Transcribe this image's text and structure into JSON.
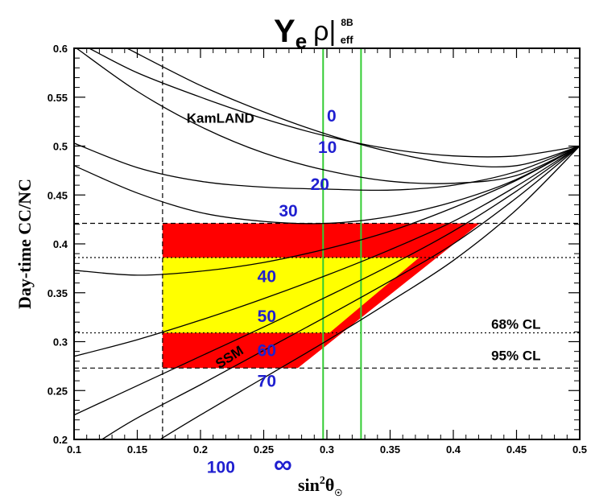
{
  "chart_data": {
    "type": "line",
    "title": {
      "symbol": "Y",
      "subscript": "e",
      "rho": "ρ|",
      "superscript": "8B",
      "sub2": "eff"
    },
    "xlabel": {
      "base": "sin",
      "sup": "2",
      "theta": "θ",
      "sub": "☉"
    },
    "ylabel": "Day-time CC/NC",
    "xlim": [
      0.1,
      0.5
    ],
    "ylim": [
      0.2,
      0.6
    ],
    "x_ticks": [
      "0.1",
      "0.15",
      "0.2",
      "0.25",
      "0.3",
      "0.35",
      "0.4",
      "0.45",
      "0.5"
    ],
    "x_tick_values": [
      0.1,
      0.15,
      0.2,
      0.25,
      0.3,
      0.35,
      0.4,
      0.45,
      0.5
    ],
    "y_ticks": [
      "0.2",
      "0.25",
      "0.3",
      "0.35",
      "0.4",
      "0.45",
      "0.5",
      "0.55",
      "0.6"
    ],
    "y_tick_values": [
      0.2,
      0.25,
      0.3,
      0.35,
      0.4,
      0.45,
      0.5,
      0.55,
      0.6
    ],
    "grid": false,
    "series": [
      {
        "name": "0",
        "x": [
          0.112,
          0.15,
          0.2,
          0.25,
          0.3,
          0.35,
          0.4,
          0.45,
          0.5
        ],
        "y": [
          0.6,
          0.575,
          0.55,
          0.528,
          0.51,
          0.497,
          0.49,
          0.49,
          0.5
        ]
      },
      {
        "name": "10",
        "x": [
          0.142,
          0.2,
          0.25,
          0.3,
          0.35,
          0.4,
          0.45,
          0.5
        ],
        "y": [
          0.6,
          0.562,
          0.535,
          0.512,
          0.494,
          0.482,
          0.48,
          0.5
        ]
      },
      {
        "name": "20",
        "x": [
          0.102,
          0.15,
          0.2,
          0.25,
          0.3,
          0.35,
          0.4,
          0.45,
          0.5
        ],
        "y": [
          0.6,
          0.556,
          0.52,
          0.493,
          0.475,
          0.464,
          0.462,
          0.47,
          0.5
        ]
      },
      {
        "name": "30",
        "x": [
          0.1,
          0.15,
          0.2,
          0.25,
          0.3,
          0.35,
          0.4,
          0.45,
          0.5
        ],
        "y": [
          0.503,
          0.478,
          0.464,
          0.458,
          0.456,
          0.455,
          0.46,
          0.474,
          0.5
        ]
      },
      {
        "name": "40",
        "x": [
          0.1,
          0.15,
          0.2,
          0.25,
          0.3,
          0.35,
          0.4,
          0.45,
          0.5
        ],
        "y": [
          0.48,
          0.452,
          0.432,
          0.423,
          0.421,
          0.428,
          0.443,
          0.466,
          0.5
        ]
      },
      {
        "name": "50",
        "x": [
          0.1,
          0.15,
          0.2,
          0.25,
          0.3,
          0.35,
          0.4,
          0.45,
          0.5
        ],
        "y": [
          0.373,
          0.368,
          0.372,
          0.381,
          0.395,
          0.413,
          0.437,
          0.465,
          0.5
        ]
      },
      {
        "name": "60",
        "x": [
          0.1,
          0.15,
          0.2,
          0.25,
          0.3,
          0.35,
          0.4,
          0.45,
          0.5
        ],
        "y": [
          0.285,
          0.302,
          0.322,
          0.344,
          0.368,
          0.394,
          0.423,
          0.459,
          0.5
        ]
      },
      {
        "name": "70",
        "x": [
          0.1,
          0.15,
          0.2,
          0.25,
          0.3,
          0.35,
          0.4,
          0.45,
          0.5
        ],
        "y": [
          0.225,
          0.255,
          0.285,
          0.315,
          0.346,
          0.378,
          0.413,
          0.454,
          0.5
        ]
      },
      {
        "name": "100",
        "x": [
          0.122,
          0.15,
          0.2,
          0.25,
          0.3,
          0.35,
          0.4,
          0.45,
          0.5
        ],
        "y": [
          0.2,
          0.222,
          0.256,
          0.291,
          0.326,
          0.362,
          0.4,
          0.447,
          0.5
        ]
      },
      {
        "name": "∞",
        "x": [
          0.168,
          0.2,
          0.25,
          0.3,
          0.35,
          0.4,
          0.45,
          0.5
        ],
        "y": [
          0.2,
          0.225,
          0.263,
          0.301,
          0.341,
          0.383,
          0.435,
          0.5
        ]
      }
    ],
    "regions": [
      {
        "label": "95% CL",
        "color": "#ff0000",
        "x0": 0.17,
        "y_min": 0.273,
        "y_max": 0.421,
        "edge_x_at_ymin": 0.277,
        "edge_x_at_ymax": 0.421
      },
      {
        "label": "68% CL",
        "color": "#ffff00",
        "x0": 0.17,
        "y_min": 0.309,
        "y_max": 0.386,
        "edge_x_at_ymin": 0.302,
        "edge_x_at_ymax": 0.373
      }
    ],
    "hlines": [
      {
        "y": 0.421,
        "style": "dashed"
      },
      {
        "y": 0.273,
        "style": "dashed"
      },
      {
        "y": 0.386,
        "style": "dotted"
      },
      {
        "y": 0.309,
        "style": "dotted"
      }
    ],
    "vlines": [
      {
        "x": 0.17,
        "style": "dashed",
        "color": "#000000"
      },
      {
        "x": 0.297,
        "style": "solid",
        "color": "#33cc33"
      },
      {
        "x": 0.327,
        "style": "solid",
        "color": "#33cc33"
      }
    ],
    "curve_labels": [
      {
        "text": "0",
        "x": 0.3,
        "y": 0.525
      },
      {
        "text": "10",
        "x": 0.293,
        "y": 0.493
      },
      {
        "text": "20",
        "x": 0.287,
        "y": 0.455
      },
      {
        "text": "30",
        "x": 0.262,
        "y": 0.428
      },
      {
        "text": "40",
        "x": 0.245,
        "y": 0.361
      },
      {
        "text": "50",
        "x": 0.245,
        "y": 0.32
      },
      {
        "text": "60",
        "x": 0.245,
        "y": 0.285
      },
      {
        "text": "70",
        "x": 0.245,
        "y": 0.254
      },
      {
        "text": "100",
        "x": 0.205,
        "y": 0.166
      },
      {
        "text": "∞",
        "x": 0.258,
        "y": 0.166
      }
    ],
    "annotations": [
      {
        "text": "KamLAND",
        "x": 0.189,
        "y": 0.524
      },
      {
        "text": "SSM",
        "x": 0.215,
        "y": 0.272,
        "rotate": -33
      },
      {
        "text": "68% CL",
        "x": 0.43,
        "y": 0.313
      },
      {
        "text": "95% CL",
        "x": 0.43,
        "y": 0.281
      }
    ],
    "colors": {
      "curve_label": "#1f1fd0",
      "region_95": "#ff0000",
      "region_68": "#ffff00",
      "vline_green": "#33cc33"
    }
  }
}
